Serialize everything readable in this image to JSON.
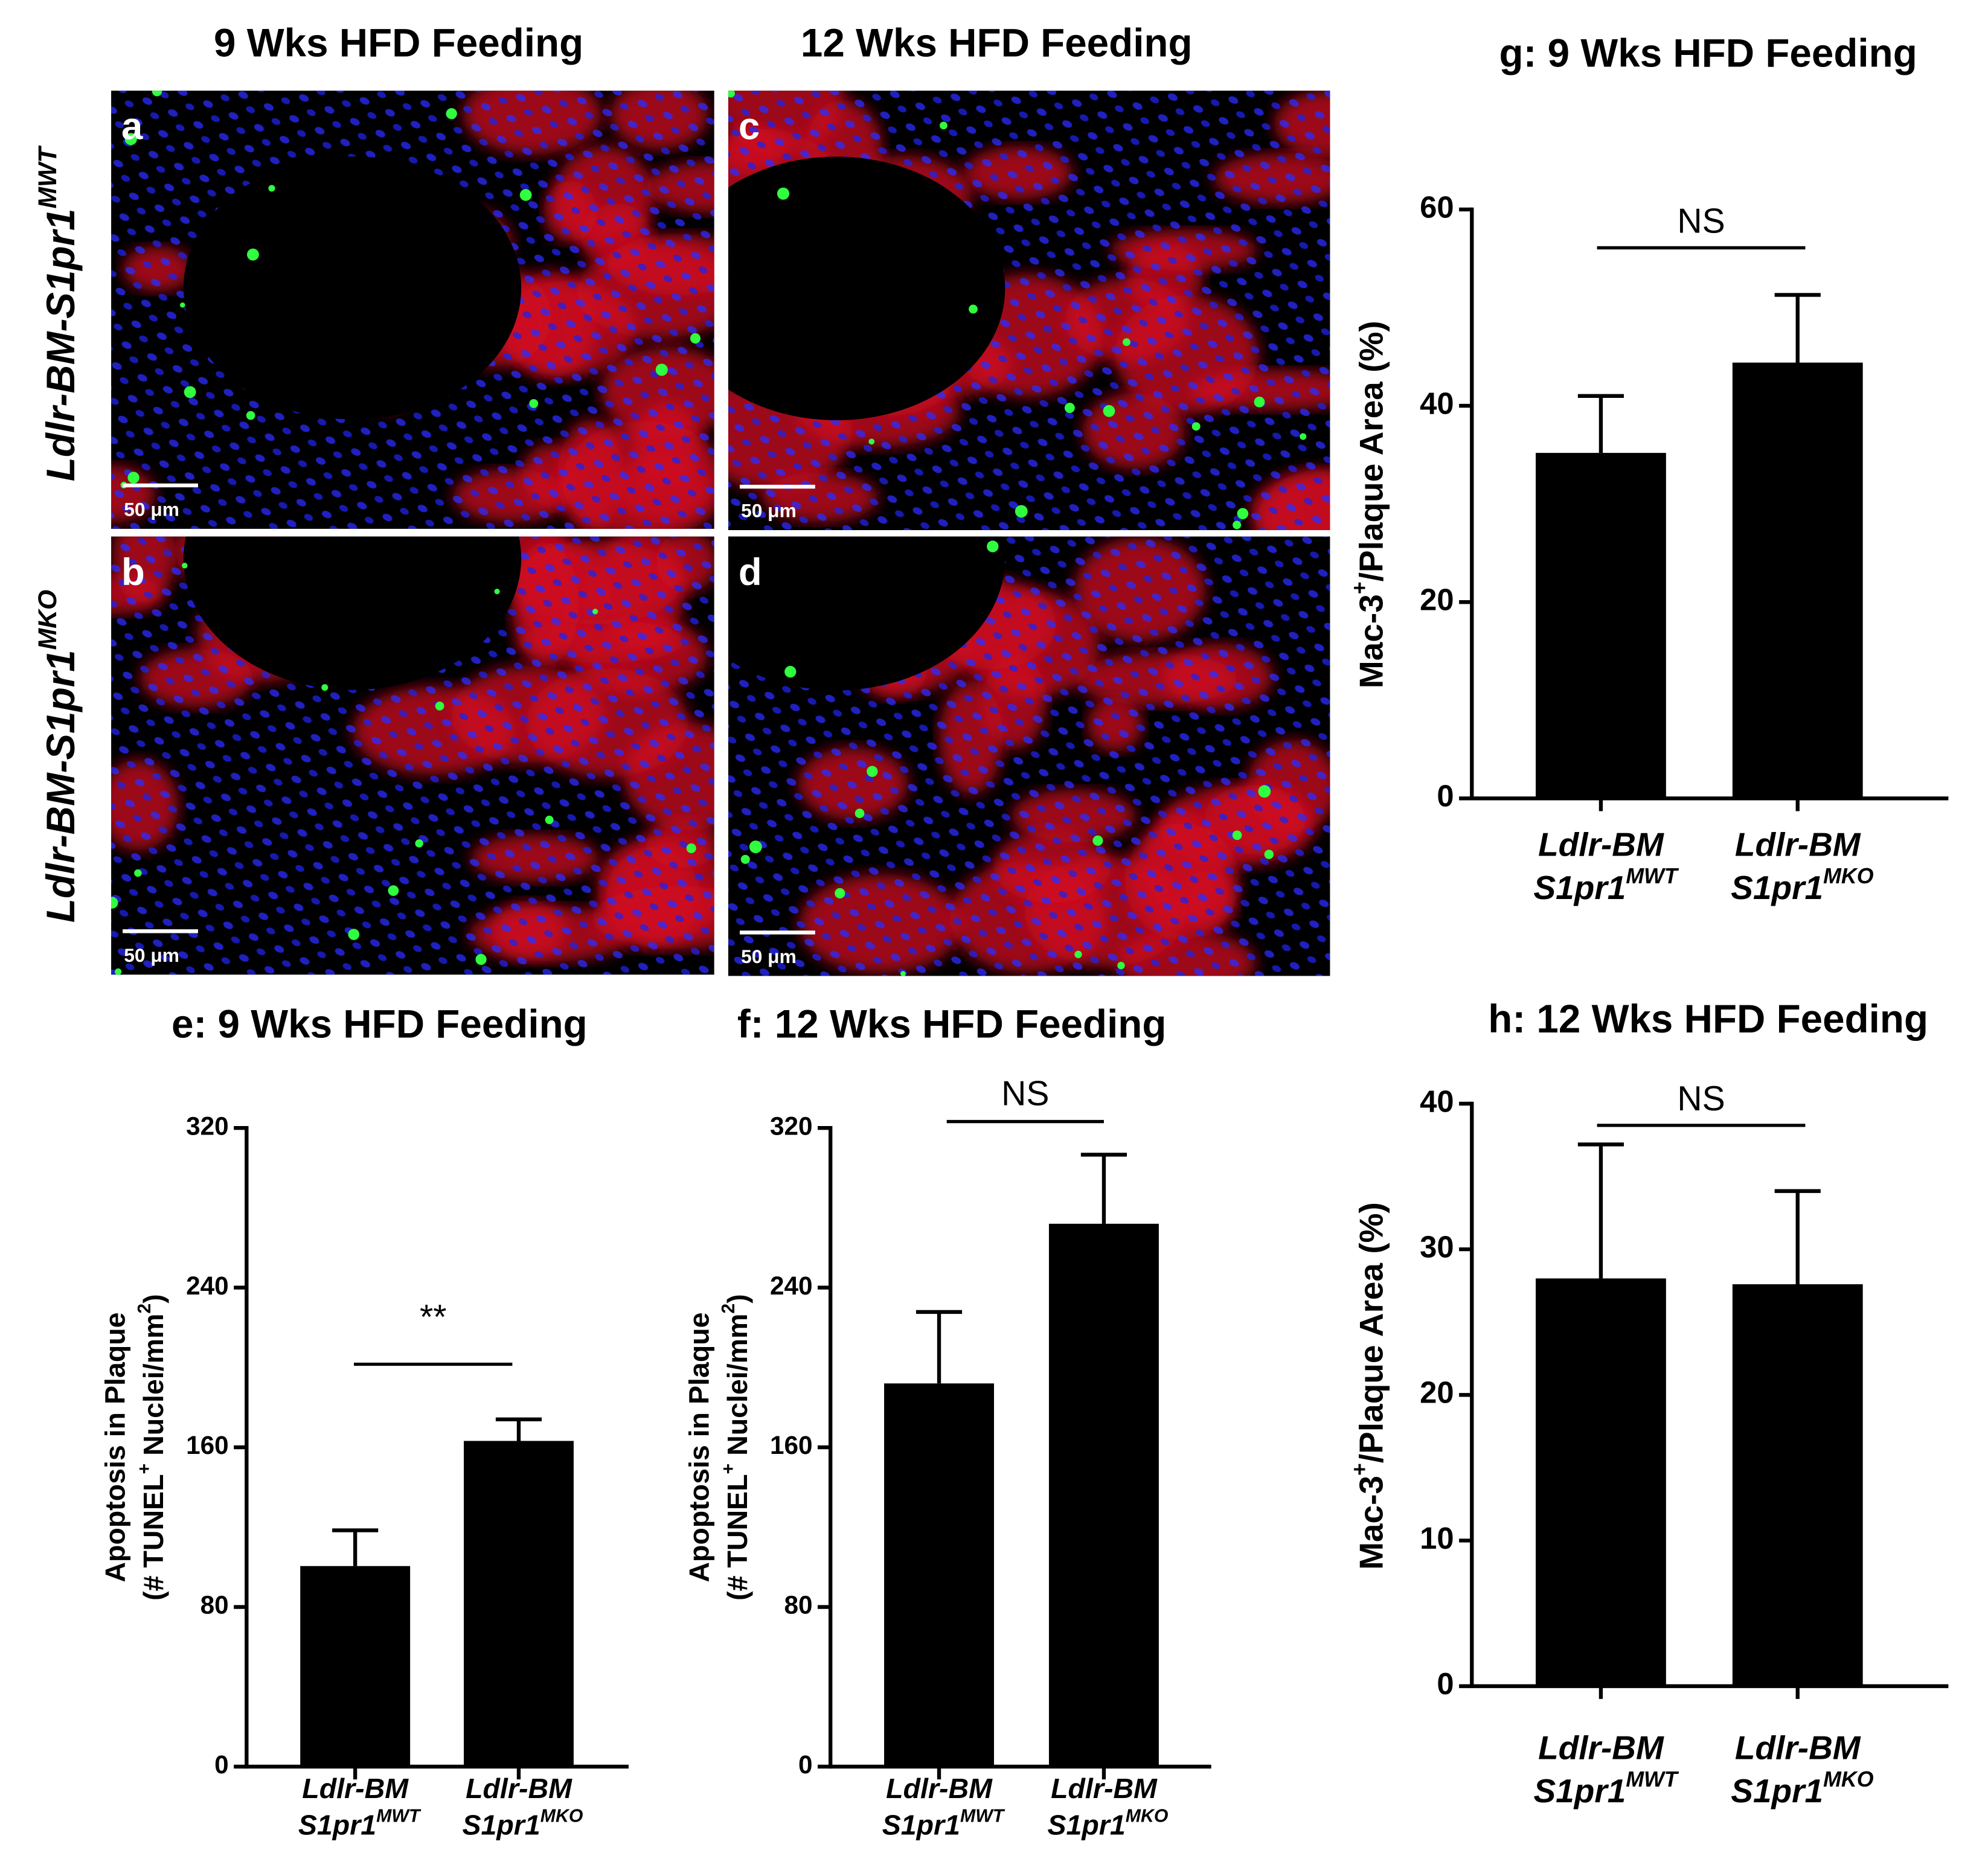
{
  "figure": {
    "column_titles": [
      "9 Wks HFD Feeding",
      "12 Wks HFD Feeding"
    ],
    "row_labels": [
      "Ldlr-BM-S1pr1MWT",
      "Ldlr-BM-S1pr1MKO"
    ],
    "images": [
      {
        "letter": "a",
        "scale": "50 μm"
      },
      {
        "letter": "c",
        "scale": "50 μm"
      },
      {
        "letter": "b",
        "scale": "50 μm"
      },
      {
        "letter": "d",
        "scale": "50 μm"
      }
    ]
  },
  "chart_data": [
    {
      "type": "bar",
      "title": "g: 9 Wks HFD Feeding",
      "ylabel": [
        "Mac-3+/Plaque Area (%)"
      ],
      "categories": [
        "Ldlr-BM S1pr1MWT",
        "Ldlr-BM S1pr1MKO"
      ],
      "values": [
        35.2,
        44.4
      ],
      "errors": [
        5.8,
        6.9
      ],
      "color": "#000000",
      "ylim": [
        0,
        60
      ],
      "yticks": [
        0,
        20,
        40,
        60
      ],
      "annotation": "NS"
    },
    {
      "type": "bar",
      "title": "h: 12 Wks HFD Feeding",
      "ylabel": [
        "Mac-3+/Plaque Area (%)"
      ],
      "categories": [
        "Ldlr-BM S1pr1MWT",
        "Ldlr-BM S1pr1MKO"
      ],
      "values": [
        28.0,
        27.6
      ],
      "errors": [
        9.2,
        6.4
      ],
      "color": "#000000",
      "ylim": [
        0,
        40
      ],
      "yticks": [
        0,
        10,
        20,
        30,
        40
      ],
      "annotation": "NS"
    },
    {
      "type": "bar",
      "title": "e: 9 Wks HFD Feeding",
      "ylabel": [
        "Apoptosis in Plaque",
        "(# TUNEL+ Nuclei/mm2)"
      ],
      "categories": [
        "Ldlr-BM S1pr1MWT",
        "Ldlr-BM S1pr1MKO"
      ],
      "values": [
        100.5,
        163.2
      ],
      "errors": [
        17.9,
        10.8
      ],
      "color": "#000000",
      "ylim": [
        0,
        320
      ],
      "yticks": [
        0,
        80,
        160,
        240,
        320
      ],
      "annotation": "**"
    },
    {
      "type": "bar",
      "title": "f: 12 Wks HFD Feeding",
      "ylabel": [
        "Apoptosis in Plaque",
        "(# TUNEL+ Nuclei/mm2)"
      ],
      "categories": [
        "Ldlr-BM S1pr1MWT",
        "Ldlr-BM S1pr1MKO"
      ],
      "values": [
        192.0,
        272.0
      ],
      "errors": [
        35.8,
        34.6
      ],
      "color": "#000000",
      "ylim": [
        0,
        320
      ],
      "yticks": [
        0,
        80,
        160,
        240,
        320
      ],
      "annotation": "NS"
    }
  ]
}
